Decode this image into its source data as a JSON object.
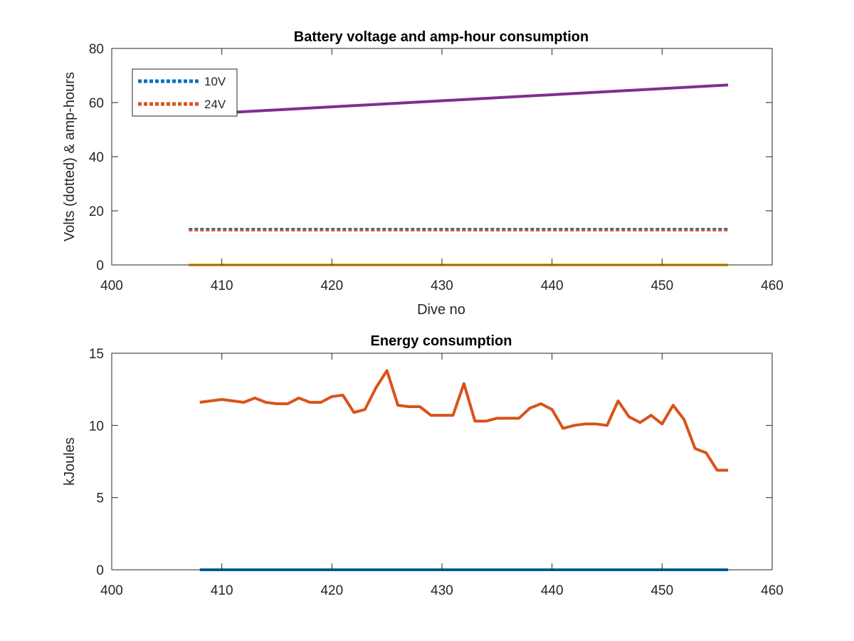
{
  "colors": {
    "blue": "#0072BD",
    "orange": "#D95319",
    "yellow": "#EDB120",
    "purple": "#7E2F8E",
    "axis": "#262626"
  },
  "chart_data": [
    {
      "type": "line",
      "title": "Battery voltage and amp-hour consumption",
      "xlabel": "Dive no",
      "ylabel": "Volts (dotted) & amp-hours",
      "xlim": [
        400,
        460
      ],
      "ylim": [
        0,
        80
      ],
      "xticks": [
        400,
        410,
        420,
        430,
        440,
        450,
        460
      ],
      "yticks": [
        0,
        20,
        40,
        60,
        80
      ],
      "grid": false,
      "legend": {
        "position": "top-left",
        "entries": [
          "10V",
          "24V"
        ]
      },
      "series": [
        {
          "name": "10V",
          "style": "dotted",
          "color": "#0072BD",
          "x": [
            407,
            456
          ],
          "y": [
            13.3,
            13.3
          ]
        },
        {
          "name": "24V",
          "style": "dotted",
          "color": "#D95319",
          "x": [
            407,
            456
          ],
          "y": [
            12.8,
            12.8
          ]
        },
        {
          "style": "solid",
          "color": "#EDB120",
          "x": [
            407,
            456
          ],
          "y": [
            0,
            0
          ]
        },
        {
          "style": "solid",
          "color": "#7E2F8E",
          "x": [
            407,
            456
          ],
          "y": [
            55.5,
            66.5
          ]
        }
      ]
    },
    {
      "type": "line",
      "title": "Energy consumption",
      "xlabel": "",
      "ylabel": "kJoules",
      "xlim": [
        400,
        460
      ],
      "ylim": [
        0,
        15
      ],
      "xticks": [
        400,
        410,
        420,
        430,
        440,
        450,
        460
      ],
      "yticks": [
        0,
        5,
        10,
        15
      ],
      "grid": false,
      "series": [
        {
          "style": "solid",
          "color": "#0072BD",
          "x": [
            408,
            456
          ],
          "y": [
            0,
            0
          ]
        },
        {
          "style": "solid",
          "color": "#D95319",
          "x": [
            408,
            409,
            410,
            411,
            412,
            413,
            414,
            415,
            416,
            417,
            418,
            419,
            420,
            421,
            422,
            423,
            424,
            425,
            426,
            427,
            428,
            429,
            430,
            431,
            432,
            433,
            434,
            435,
            436,
            437,
            438,
            439,
            440,
            441,
            442,
            443,
            444,
            445,
            446,
            447,
            448,
            449,
            450,
            451,
            452,
            453,
            454,
            455,
            456
          ],
          "y": [
            11.6,
            11.7,
            11.8,
            11.7,
            11.6,
            11.9,
            11.6,
            11.5,
            11.5,
            11.9,
            11.6,
            11.6,
            12.0,
            12.1,
            10.9,
            11.1,
            12.6,
            13.8,
            11.4,
            11.3,
            11.3,
            10.7,
            10.7,
            10.7,
            12.9,
            10.3,
            10.3,
            10.5,
            10.5,
            10.5,
            11.2,
            11.5,
            11.1,
            9.8,
            10.0,
            10.1,
            10.1,
            10.0,
            11.7,
            10.6,
            10.2,
            10.7,
            10.1,
            11.4,
            10.4,
            8.4,
            8.1,
            6.9,
            6.9
          ]
        }
      ]
    }
  ]
}
